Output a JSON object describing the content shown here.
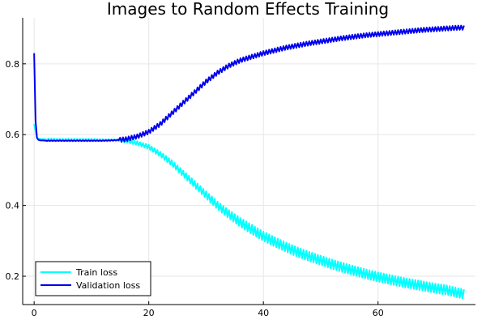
{
  "chart_data": {
    "type": "line",
    "title": "Images to Random Effects Training",
    "xlabel": "",
    "ylabel": "",
    "xlim": [
      -2,
      77
    ],
    "ylim": [
      0.12,
      0.93
    ],
    "xticks": [
      0,
      20,
      40,
      60
    ],
    "yticks": [
      0.2,
      0.4,
      0.6,
      0.8
    ],
    "xtick_labels": [
      "0",
      "20",
      "40",
      "60"
    ],
    "ytick_labels": [
      "0.2",
      "0.4",
      "0.6",
      "0.8"
    ],
    "grid": true,
    "legend": "bottom-left",
    "series": [
      {
        "name": "Train loss",
        "color": "#00ffff",
        "x": [
          0,
          0.5,
          1,
          2,
          4,
          6,
          8,
          10,
          12,
          14,
          16,
          18,
          20,
          22,
          24,
          26,
          28,
          30,
          32,
          34,
          36,
          38,
          40,
          42,
          44,
          46,
          48,
          50,
          52,
          54,
          56,
          58,
          60,
          62,
          64,
          66,
          68,
          70,
          72,
          74,
          75
        ],
        "y": [
          0.63,
          0.59,
          0.588,
          0.587,
          0.586,
          0.586,
          0.586,
          0.586,
          0.585,
          0.585,
          0.582,
          0.576,
          0.565,
          0.545,
          0.52,
          0.49,
          0.46,
          0.43,
          0.4,
          0.375,
          0.352,
          0.332,
          0.313,
          0.297,
          0.282,
          0.268,
          0.256,
          0.245,
          0.234,
          0.224,
          0.215,
          0.206,
          0.198,
          0.191,
          0.184,
          0.178,
          0.172,
          0.166,
          0.161,
          0.153,
          0.15
        ]
      },
      {
        "name": "Validation loss",
        "color": "#0000ee",
        "x": [
          0,
          0.3,
          0.6,
          1,
          2,
          4,
          6,
          8,
          10,
          12,
          14,
          16,
          18,
          20,
          22,
          24,
          26,
          28,
          30,
          32,
          34,
          36,
          38,
          40,
          42,
          44,
          46,
          48,
          50,
          52,
          54,
          56,
          58,
          60,
          62,
          64,
          66,
          68,
          70,
          72,
          74,
          75
        ],
        "y": [
          0.83,
          0.6,
          0.586,
          0.584,
          0.583,
          0.583,
          0.583,
          0.583,
          0.583,
          0.583,
          0.584,
          0.587,
          0.595,
          0.608,
          0.63,
          0.66,
          0.69,
          0.72,
          0.75,
          0.775,
          0.795,
          0.81,
          0.82,
          0.83,
          0.838,
          0.846,
          0.852,
          0.858,
          0.863,
          0.868,
          0.873,
          0.877,
          0.881,
          0.884,
          0.887,
          0.89,
          0.893,
          0.896,
          0.898,
          0.9,
          0.902,
          0.902
        ]
      }
    ]
  }
}
